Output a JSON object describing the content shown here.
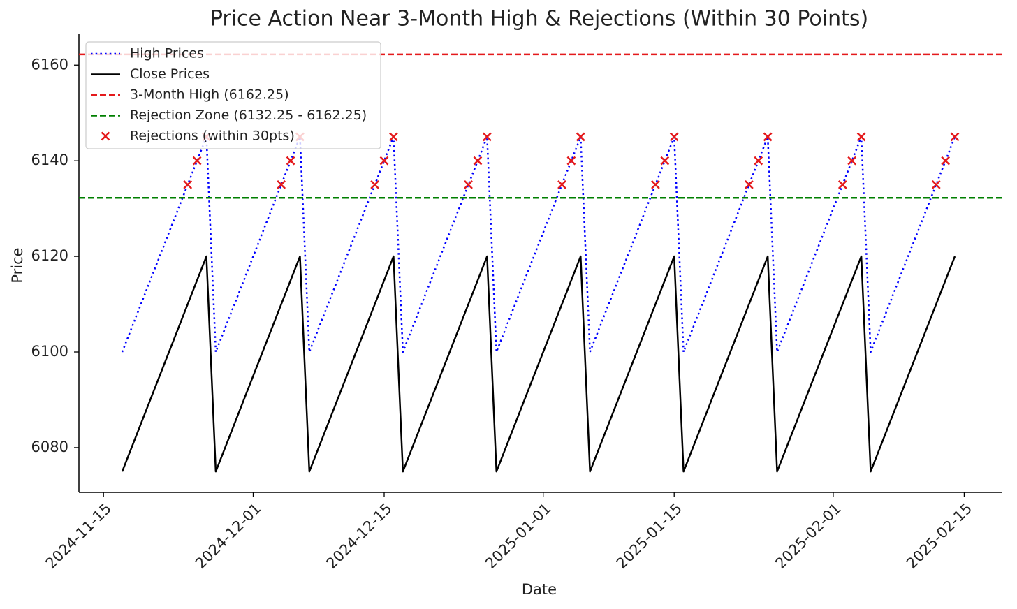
{
  "chart_data": {
    "type": "line",
    "title": "Price Action Near 3-Month High & Rejections (Within 30 Points)",
    "xlabel": "Date",
    "ylabel": "Price",
    "x": [
      "2024-11-17",
      "2024-11-18",
      "2024-11-19",
      "2024-11-20",
      "2024-11-21",
      "2024-11-22",
      "2024-11-23",
      "2024-11-24",
      "2024-11-25",
      "2024-11-26",
      "2024-11-27",
      "2024-11-28",
      "2024-11-29",
      "2024-11-30",
      "2024-12-01",
      "2024-12-02",
      "2024-12-03",
      "2024-12-04",
      "2024-12-05",
      "2024-12-06",
      "2024-12-07",
      "2024-12-08",
      "2024-12-09",
      "2024-12-10",
      "2024-12-11",
      "2024-12-12",
      "2024-12-13",
      "2024-12-14",
      "2024-12-15",
      "2024-12-16",
      "2024-12-17",
      "2024-12-18",
      "2024-12-19",
      "2024-12-20",
      "2024-12-21",
      "2024-12-22",
      "2024-12-23",
      "2024-12-24",
      "2024-12-25",
      "2024-12-26",
      "2024-12-27",
      "2024-12-28",
      "2024-12-29",
      "2024-12-30",
      "2024-12-31",
      "2025-01-01",
      "2025-01-02",
      "2025-01-03",
      "2025-01-04",
      "2025-01-05",
      "2025-01-06",
      "2025-01-07",
      "2025-01-08",
      "2025-01-09",
      "2025-01-10",
      "2025-01-11",
      "2025-01-12",
      "2025-01-13",
      "2025-01-14",
      "2025-01-15",
      "2025-01-16",
      "2025-01-17",
      "2025-01-18",
      "2025-01-19",
      "2025-01-20",
      "2025-01-21",
      "2025-01-22",
      "2025-01-23",
      "2025-01-24",
      "2025-01-25",
      "2025-01-26",
      "2025-01-27",
      "2025-01-28",
      "2025-01-29",
      "2025-01-30",
      "2025-01-31",
      "2025-02-01",
      "2025-02-02",
      "2025-02-03",
      "2025-02-04",
      "2025-02-05",
      "2025-02-06",
      "2025-02-07",
      "2025-02-08",
      "2025-02-09",
      "2025-02-10",
      "2025-02-11",
      "2025-02-12",
      "2025-02-13",
      "2025-02-14"
    ],
    "series": [
      {
        "name": "High Prices",
        "color": "#0000ff",
        "style": "dotted",
        "values": [
          6100,
          6105,
          6110,
          6115,
          6120,
          6125,
          6130,
          6135,
          6140,
          6145,
          6100,
          6105,
          6110,
          6115,
          6120,
          6125,
          6130,
          6135,
          6140,
          6145,
          6100,
          6105,
          6110,
          6115,
          6120,
          6125,
          6130,
          6135,
          6140,
          6145,
          6100,
          6105,
          6110,
          6115,
          6120,
          6125,
          6130,
          6135,
          6140,
          6145,
          6100,
          6105,
          6110,
          6115,
          6120,
          6125,
          6130,
          6135,
          6140,
          6145,
          6100,
          6105,
          6110,
          6115,
          6120,
          6125,
          6130,
          6135,
          6140,
          6145,
          6100,
          6105,
          6110,
          6115,
          6120,
          6125,
          6130,
          6135,
          6140,
          6145,
          6100,
          6105,
          6110,
          6115,
          6120,
          6125,
          6130,
          6135,
          6140,
          6145,
          6100,
          6105,
          6110,
          6115,
          6120,
          6125,
          6130,
          6135,
          6140,
          6145
        ]
      },
      {
        "name": "Close Prices",
        "color": "#000000",
        "style": "solid",
        "values": [
          6075,
          6080,
          6085,
          6090,
          6095,
          6100,
          6105,
          6110,
          6115,
          6120,
          6075,
          6080,
          6085,
          6090,
          6095,
          6100,
          6105,
          6110,
          6115,
          6120,
          6075,
          6080,
          6085,
          6090,
          6095,
          6100,
          6105,
          6110,
          6115,
          6120,
          6075,
          6080,
          6085,
          6090,
          6095,
          6100,
          6105,
          6110,
          6115,
          6120,
          6075,
          6080,
          6085,
          6090,
          6095,
          6100,
          6105,
          6110,
          6115,
          6120,
          6075,
          6080,
          6085,
          6090,
          6095,
          6100,
          6105,
          6110,
          6115,
          6120,
          6075,
          6080,
          6085,
          6090,
          6095,
          6100,
          6105,
          6110,
          6115,
          6120,
          6075,
          6080,
          6085,
          6090,
          6095,
          6100,
          6105,
          6110,
          6115,
          6120,
          6075,
          6080,
          6085,
          6090,
          6095,
          6100,
          6105,
          6110,
          6115,
          6120
        ]
      }
    ],
    "reference_lines": [
      {
        "name": "3-Month High (6162.25)",
        "value": 6162.25,
        "color": "#e41a1c",
        "style": "dashed"
      },
      {
        "name": "Rejection Zone (6132.25 - 6162.25)",
        "value": 6132.25,
        "color": "#007f00",
        "style": "dashed"
      }
    ],
    "scatter": {
      "name": "Rejections (within 30pts)",
      "color": "#e41a1c",
      "marker": "x",
      "x": [
        "2024-11-24",
        "2024-11-25",
        "2024-11-26",
        "2024-12-04",
        "2024-12-05",
        "2024-12-06",
        "2024-12-14",
        "2024-12-15",
        "2024-12-16",
        "2024-12-24",
        "2024-12-25",
        "2024-12-26",
        "2025-01-03",
        "2025-01-04",
        "2025-01-05",
        "2025-01-13",
        "2025-01-14",
        "2025-01-15",
        "2025-01-23",
        "2025-01-24",
        "2025-01-25",
        "2025-02-02",
        "2025-02-03",
        "2025-02-04",
        "2025-02-12",
        "2025-02-13",
        "2025-02-14"
      ],
      "values": [
        6135,
        6140,
        6145,
        6135,
        6140,
        6145,
        6135,
        6140,
        6145,
        6135,
        6140,
        6145,
        6135,
        6140,
        6145,
        6135,
        6140,
        6145,
        6135,
        6140,
        6145,
        6135,
        6140,
        6145,
        6135,
        6140,
        6145
      ]
    },
    "xlim": [
      "2024-11-12",
      "2025-02-19"
    ],
    "ylim": [
      6070.64,
      6166.61
    ],
    "xticks": [
      "2024-11-15",
      "2024-12-01",
      "2024-12-15",
      "2025-01-01",
      "2025-01-15",
      "2025-02-01",
      "2025-02-15"
    ],
    "yticks": [
      6080,
      6100,
      6120,
      6140,
      6160
    ],
    "legend": "upper left"
  }
}
